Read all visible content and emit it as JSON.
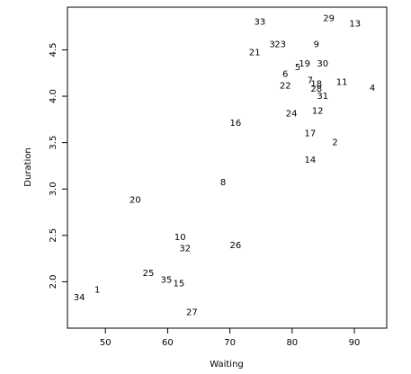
{
  "chart_data": {
    "type": "scatter",
    "x_label": "Waiting",
    "y_label": "Duration",
    "labels": [
      "1",
      "2",
      "3",
      "4",
      "5",
      "6",
      "7",
      "8",
      "9",
      "10",
      "11",
      "12",
      "13",
      "14",
      "15",
      "16",
      "17",
      "18",
      "19",
      "20",
      "21",
      "22",
      "23",
      "24",
      "25",
      "26",
      "27",
      "28",
      "29",
      "30",
      "31",
      "32",
      "33",
      "34",
      "35"
    ],
    "x": [
      48.7,
      86.9,
      76.8,
      92.9,
      80.9,
      78.9,
      82.9,
      68.9,
      83.9,
      62.0,
      88.0,
      84.1,
      90.1,
      82.9,
      61.8,
      70.9,
      82.9,
      83.9,
      82.0,
      54.8,
      74.0,
      78.9,
      78.1,
      79.9,
      56.9,
      70.9,
      63.9,
      83.9,
      85.9,
      84.9,
      84.9,
      62.8,
      74.8,
      45.8,
      59.8
    ],
    "y": [
      1.91,
      3.5,
      4.56,
      4.09,
      4.31,
      4.24,
      4.17,
      3.07,
      4.56,
      2.48,
      4.15,
      3.84,
      4.78,
      3.31,
      1.98,
      3.71,
      3.6,
      4.13,
      4.35,
      2.88,
      4.47,
      4.11,
      4.56,
      3.81,
      2.09,
      2.39,
      1.67,
      4.08,
      4.84,
      4.35,
      4.0,
      2.36,
      4.8,
      1.83,
      2.02
    ],
    "xlim": [
      43.9,
      95.2
    ],
    "ylim": [
      1.5,
      4.96
    ],
    "xticks": [
      50,
      60,
      70,
      80,
      90
    ],
    "yticks": [
      {
        "value": 2,
        "label": "2.0"
      },
      2.5,
      {
        "value": 3,
        "label": "3.0"
      },
      3.5,
      {
        "value": 4,
        "label": "4.0"
      },
      4.5
    ]
  }
}
